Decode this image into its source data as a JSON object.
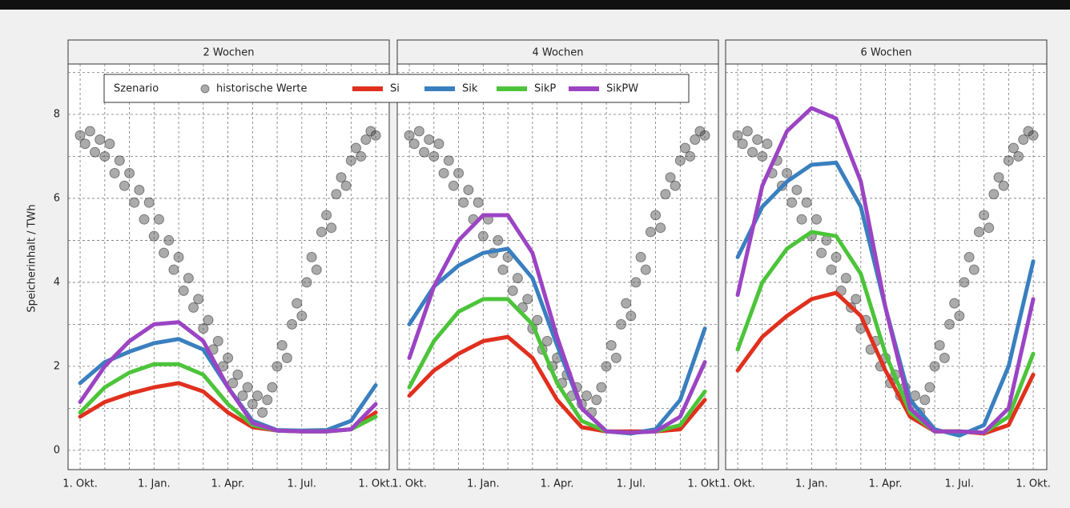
{
  "chart_data": {
    "type": "line",
    "y_label": "Speicherinhalt / TWh",
    "legend_title": "Szenario",
    "xlim": [
      -0.49,
      12.55
    ],
    "ylim": [
      -0.46,
      9.2
    ],
    "xticks": [
      {
        "value": 0,
        "label": "1. Okt."
      },
      {
        "value": 3,
        "label": "1. Jan."
      },
      {
        "value": 6,
        "label": "1. Apr."
      },
      {
        "value": 9,
        "label": "1. Jul."
      },
      {
        "value": 12,
        "label": "1. Okt."
      }
    ],
    "minor_xticks": [
      1,
      2,
      4,
      5,
      7,
      8,
      10,
      11
    ],
    "yticks": [
      0,
      2,
      4,
      6,
      8
    ],
    "minor_yticks": [
      1,
      3,
      5,
      7,
      9
    ],
    "grid": true,
    "x": [
      0,
      1,
      2,
      3,
      4,
      5,
      6,
      7,
      8,
      9,
      10,
      11,
      12
    ],
    "historic": {
      "name": "historische Werte",
      "color": "#444444",
      "x": [
        0,
        0.2,
        0.4,
        0.6,
        0.8,
        1,
        1.2,
        1.4,
        1.6,
        1.8,
        2,
        2.2,
        2.4,
        2.6,
        2.8,
        3,
        3.2,
        3.4,
        3.6,
        3.8,
        4,
        4.2,
        4.4,
        4.6,
        4.8,
        5,
        5.2,
        5.4,
        5.6,
        5.8,
        6,
        6.2,
        6.4,
        6.6,
        6.8,
        7,
        7.2,
        7.4,
        7.6,
        7.8,
        8,
        8.2,
        8.4,
        8.6,
        8.8,
        9,
        9.2,
        9.4,
        9.6,
        9.8,
        10,
        10.2,
        10.4,
        10.6,
        10.8,
        11,
        11.2,
        11.4,
        11.6,
        11.8,
        12
      ],
      "values": [
        7.5,
        7.3,
        7.6,
        7.1,
        7.4,
        7.0,
        7.3,
        6.6,
        6.9,
        6.3,
        6.6,
        5.9,
        6.2,
        5.5,
        5.9,
        5.1,
        5.5,
        4.7,
        5.0,
        4.3,
        4.6,
        3.8,
        4.1,
        3.4,
        3.6,
        2.9,
        3.1,
        2.4,
        2.6,
        2.0,
        2.2,
        1.6,
        1.8,
        1.3,
        1.5,
        1.1,
        1.3,
        0.9,
        1.2,
        1.5,
        2.0,
        2.5,
        2.2,
        3.0,
        3.5,
        3.2,
        4.0,
        4.6,
        4.3,
        5.2,
        5.6,
        5.3,
        6.1,
        6.5,
        6.3,
        6.9,
        7.2,
        7.0,
        7.4,
        7.6,
        7.5
      ]
    },
    "panels": [
      {
        "title": "2 Wochen",
        "series": [
          {
            "name": "Si",
            "color": "#e0301e",
            "values": [
              0.8,
              1.15,
              1.35,
              1.5,
              1.6,
              1.4,
              0.9,
              0.55,
              0.47,
              0.45,
              0.45,
              0.5,
              0.9
            ]
          },
          {
            "name": "Sik",
            "color": "#3a7fbf",
            "values": [
              1.6,
              2.1,
              2.35,
              2.55,
              2.65,
              2.4,
              1.5,
              0.7,
              0.48,
              0.47,
              0.48,
              0.7,
              1.55
            ]
          },
          {
            "name": "SikP",
            "color": "#4cc43a",
            "values": [
              0.9,
              1.5,
              1.85,
              2.05,
              2.05,
              1.8,
              1.1,
              0.6,
              0.47,
              0.45,
              0.45,
              0.5,
              0.8
            ]
          },
          {
            "name": "SikPW",
            "color": "#9b44c4",
            "values": [
              1.15,
              2.0,
              2.6,
              3.0,
              3.05,
              2.6,
              1.5,
              0.65,
              0.47,
              0.45,
              0.45,
              0.5,
              1.1
            ]
          }
        ]
      },
      {
        "title": "4 Wochen",
        "series": [
          {
            "name": "Si",
            "color": "#e0301e",
            "values": [
              1.3,
              1.9,
              2.3,
              2.6,
              2.7,
              2.2,
              1.2,
              0.55,
              0.45,
              0.45,
              0.45,
              0.5,
              1.2
            ]
          },
          {
            "name": "Sik",
            "color": "#3a7fbf",
            "values": [
              3.0,
              3.9,
              4.4,
              4.7,
              4.8,
              4.1,
              2.5,
              1.0,
              0.45,
              0.4,
              0.5,
              1.2,
              2.9
            ]
          },
          {
            "name": "SikP",
            "color": "#4cc43a",
            "values": [
              1.5,
              2.6,
              3.3,
              3.6,
              3.6,
              3.0,
              1.6,
              0.7,
              0.45,
              0.42,
              0.45,
              0.6,
              1.4
            ]
          },
          {
            "name": "SikPW",
            "color": "#9b44c4",
            "values": [
              2.2,
              3.9,
              5.0,
              5.6,
              5.6,
              4.7,
              2.7,
              1.0,
              0.45,
              0.42,
              0.45,
              0.8,
              2.1
            ]
          }
        ]
      },
      {
        "title": "6 Wochen",
        "series": [
          {
            "name": "Si",
            "color": "#e0301e",
            "values": [
              1.9,
              2.7,
              3.2,
              3.6,
              3.75,
              3.2,
              1.9,
              0.8,
              0.45,
              0.45,
              0.4,
              0.6,
              1.8
            ]
          },
          {
            "name": "Sik",
            "color": "#3a7fbf",
            "values": [
              4.6,
              5.8,
              6.4,
              6.8,
              6.85,
              5.8,
              3.4,
              1.2,
              0.5,
              0.35,
              0.6,
              2.0,
              4.5
            ]
          },
          {
            "name": "SikP",
            "color": "#4cc43a",
            "values": [
              2.4,
              4.0,
              4.8,
              5.2,
              5.1,
              4.2,
              2.3,
              0.9,
              0.45,
              0.45,
              0.42,
              0.8,
              2.3
            ]
          },
          {
            "name": "SikPW",
            "color": "#9b44c4",
            "values": [
              3.7,
              6.3,
              7.6,
              8.15,
              7.9,
              6.4,
              3.4,
              1.0,
              0.45,
              0.45,
              0.42,
              1.0,
              3.6
            ]
          }
        ]
      }
    ]
  }
}
